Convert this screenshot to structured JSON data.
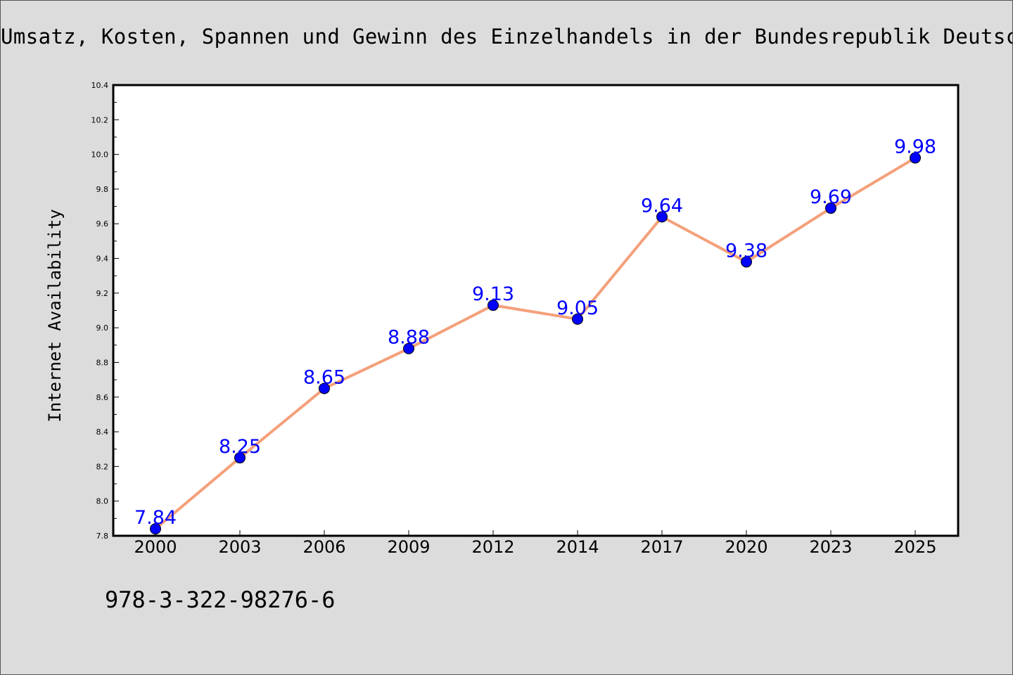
{
  "chart_data": {
    "type": "line",
    "title": "Umsatz, Kosten, Spannen und Gewinn des Einzelhandels in der Bundesrepublik Deutschland",
    "xlabel": "",
    "ylabel": "Internet Availability",
    "categories": [
      "2000",
      "2003",
      "2006",
      "2009",
      "2012",
      "2014",
      "2017",
      "2020",
      "2023",
      "2025"
    ],
    "series": [
      {
        "values": [
          7.84,
          8.25,
          8.65,
          8.88,
          9.13,
          9.05,
          9.64,
          9.38,
          9.69,
          9.98
        ]
      }
    ],
    "data_labels": [
      "7.84",
      "8.25",
      "8.65",
      "8.88",
      "9.13",
      "9.05",
      "9.64",
      "9.38",
      "9.69",
      "9.98"
    ],
    "ylim": [
      7.8,
      10.4
    ],
    "yticks": [
      "7.8",
      "8.0",
      "8.2",
      "8.4",
      "8.6",
      "8.8",
      "9.0",
      "9.2",
      "9.4",
      "9.6",
      "9.8",
      "10.0",
      "10.2",
      "10.4"
    ],
    "grid": false,
    "legend": "none",
    "line_color": "#f4a07a",
    "marker_color": "#0000ff",
    "label_color": "#0000ff"
  },
  "footer": {
    "isbn": "978-3-322-98276-6"
  }
}
